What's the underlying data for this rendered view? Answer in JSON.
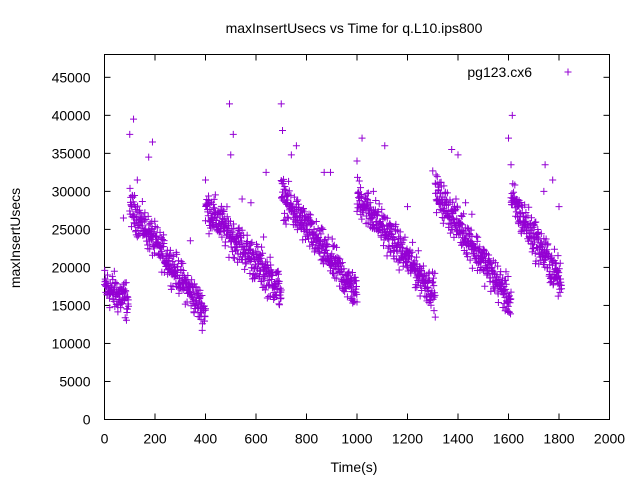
{
  "chart_data": {
    "type": "scatter",
    "title": "maxInsertUsecs vs Time for q.L10.ips800",
    "xlabel": "Time(s)",
    "ylabel": "maxInsertUsecs",
    "xlim": [
      0,
      2000
    ],
    "ylim": [
      0,
      48000
    ],
    "x_ticks": [
      0,
      200,
      400,
      600,
      800,
      1000,
      1200,
      1400,
      1600,
      1800,
      2000
    ],
    "y_ticks": [
      0,
      5000,
      10000,
      15000,
      20000,
      25000,
      30000,
      35000,
      40000,
      45000
    ],
    "legend_position": "top-right",
    "marker": "+",
    "grid": false,
    "series": [
      {
        "name": "pg123.cx6",
        "color": "#9400d3",
        "segments": [
          {
            "x_start": 0,
            "x_end": 95,
            "y_start": 17500,
            "y_end": 15500,
            "spread": 1800
          },
          {
            "x_start": 100,
            "x_end": 400,
            "y_start": 28000,
            "y_end": 14000,
            "spread": 1600
          },
          {
            "x_start": 400,
            "x_end": 700,
            "y_start": 28000,
            "y_end": 17000,
            "spread": 1800
          },
          {
            "x_start": 700,
            "x_end": 1000,
            "y_start": 29500,
            "y_end": 16500,
            "spread": 1700
          },
          {
            "x_start": 1000,
            "x_end": 1310,
            "y_start": 29500,
            "y_end": 16500,
            "spread": 1700
          },
          {
            "x_start": 1310,
            "x_end": 1610,
            "y_start": 30000,
            "y_end": 15500,
            "spread": 1700
          },
          {
            "x_start": 1610,
            "x_end": 1810,
            "y_start": 29000,
            "y_end": 18000,
            "spread": 1800
          }
        ],
        "outliers": [
          [
            100,
            37500
          ],
          [
            115,
            39500
          ],
          [
            175,
            34500
          ],
          [
            190,
            36500
          ],
          [
            130,
            31500
          ],
          [
            75,
            26500
          ],
          [
            340,
            23500
          ],
          [
            400,
            31500
          ],
          [
            495,
            41500
          ],
          [
            510,
            37500
          ],
          [
            500,
            34800
          ],
          [
            545,
            29000
          ],
          [
            580,
            28500
          ],
          [
            640,
            32500
          ],
          [
            630,
            24000
          ],
          [
            700,
            41500
          ],
          [
            705,
            38000
          ],
          [
            760,
            36000
          ],
          [
            740,
            34800
          ],
          [
            870,
            32500
          ],
          [
            895,
            32500
          ],
          [
            1000,
            34000
          ],
          [
            1020,
            37000
          ],
          [
            1110,
            36000
          ],
          [
            1065,
            30000
          ],
          [
            1200,
            28000
          ],
          [
            1300,
            32700
          ],
          [
            1375,
            35500
          ],
          [
            1400,
            34800
          ],
          [
            1430,
            28500
          ],
          [
            1455,
            27000
          ],
          [
            1600,
            37000
          ],
          [
            1615,
            40000
          ],
          [
            1610,
            33500
          ],
          [
            1745,
            33500
          ],
          [
            1740,
            30000
          ],
          [
            1775,
            31500
          ],
          [
            1800,
            28000
          ],
          [
            1795,
            19500
          ]
        ]
      }
    ]
  }
}
